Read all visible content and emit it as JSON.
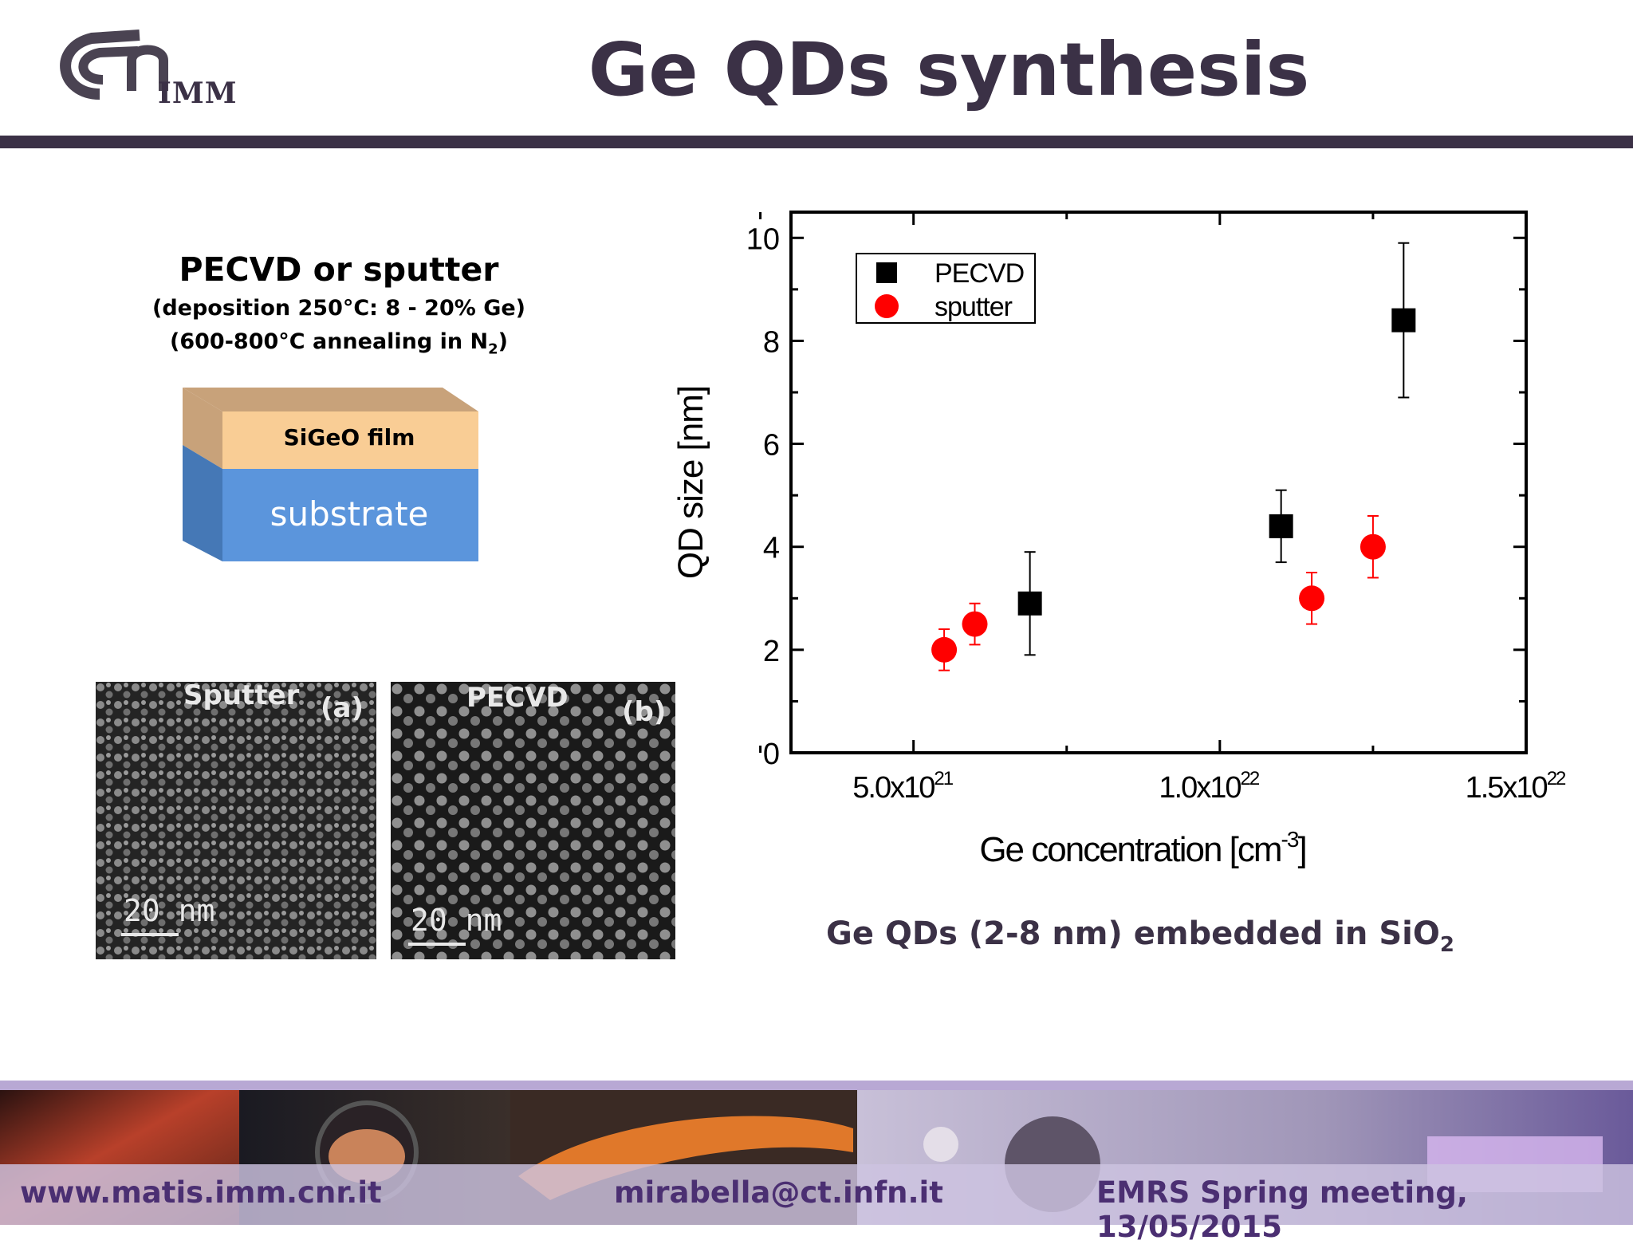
{
  "header": {
    "title": "Ge QDs synthesis",
    "logo_text": "IMM"
  },
  "left": {
    "heading": "PECVD or sputter",
    "line1": "(deposition 250°C:  8 - 20%  Ge)",
    "line2_main": "(600-800°C annealing in N",
    "line2_sub": "2",
    "line2_end": ")"
  },
  "diagram": {
    "film_label": "SiGeO film",
    "substrate_label": "substrate",
    "film_color": "#f9cd95",
    "substrate_color": "#5b95dc"
  },
  "tem": {
    "a_label": "Sputter",
    "a_tag": "(a)",
    "b_label": "PECVD",
    "b_tag": "(b)",
    "scale_a": "20  nm",
    "scale_b": "20  nm"
  },
  "chart_data": {
    "type": "scatter",
    "xlabel": "Ge concentration [cm",
    "xlabel_sup": "-3",
    "xlabel_end": "]",
    "ylabel": "QD size [nm]",
    "xlim": [
      3e+21,
      1.5e+22
    ],
    "ylim": [
      0,
      10.5
    ],
    "x_ticks": [
      {
        "value": 5e+21,
        "mant": "5.0x10",
        "exp": "21"
      },
      {
        "value": 1e+22,
        "mant": "1.0x10",
        "exp": "22"
      },
      {
        "value": 1.5e+22,
        "mant": "1.5x10",
        "exp": "22"
      }
    ],
    "y_ticks": [
      "0",
      "2",
      "4",
      "6",
      "8",
      "10"
    ],
    "legend_position": "top-left",
    "series": [
      {
        "name": "PECVD",
        "marker": "square",
        "color": "#000000",
        "points": [
          {
            "x": 6.9e+21,
            "y": 2.9,
            "err": 1.0
          },
          {
            "x": 1.1e+22,
            "y": 4.4,
            "err": 0.7
          },
          {
            "x": 1.3e+22,
            "y": 8.4,
            "err": 1.5
          }
        ]
      },
      {
        "name": "sputter",
        "marker": "circle",
        "color": "#ff0000",
        "points": [
          {
            "x": 5.5e+21,
            "y": 2.0,
            "err": 0.4
          },
          {
            "x": 6e+21,
            "y": 2.5,
            "err": 0.4
          },
          {
            "x": 1.15e+22,
            "y": 3.0,
            "err": 0.5
          },
          {
            "x": 1.25e+22,
            "y": 4.0,
            "err": 0.6
          }
        ]
      }
    ]
  },
  "caption": {
    "main": "Ge QDs (2-8 nm) embedded in SiO",
    "sub": "2"
  },
  "footer": {
    "left": "www.matis.imm.cnr.it",
    "center": "mirabella@ct.infn.it",
    "right": "EMRS Spring meeting, 13/05/2015"
  }
}
